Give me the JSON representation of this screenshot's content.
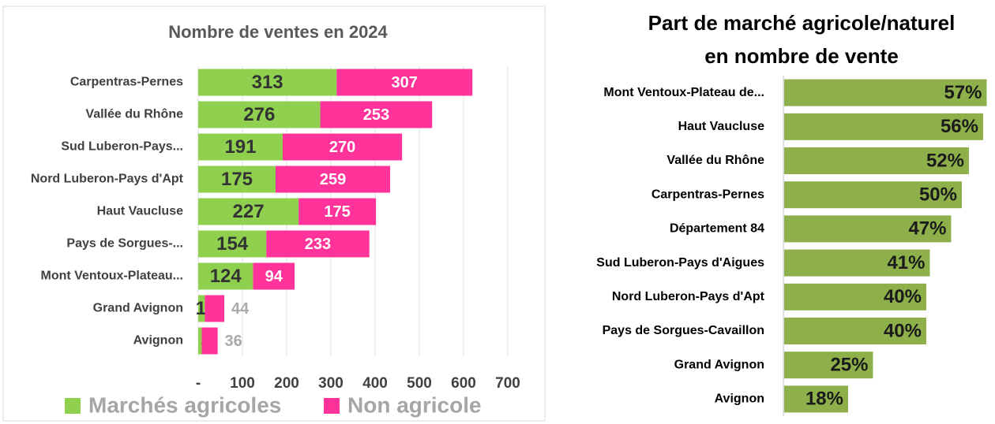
{
  "chart_data": [
    {
      "type": "stacked_bar_h",
      "title": "Nombre de ventes en 2024",
      "categories": [
        "Carpentras-Pernes",
        "Vallée du Rhône",
        "Sud Luberon-Pays...",
        "Nord Luberon-Pays d'Apt",
        "Haut Vaucluse",
        "Pays de Sorgues-...",
        "Mont Ventoux-Plateau...",
        "Grand Avignon",
        "Avignon"
      ],
      "series": [
        {
          "name": "Marchés agricoles",
          "color": "#8fd14f",
          "values": [
            313,
            276,
            191,
            175,
            227,
            154,
            124,
            15,
            8
          ]
        },
        {
          "name": "Non agricole",
          "color": "#ff3399",
          "values": [
            307,
            253,
            270,
            259,
            175,
            233,
            94,
            44,
            36
          ]
        }
      ],
      "xlim": [
        0,
        700
      ],
      "xticks": [
        {
          "value": 0,
          "label": "-"
        },
        100,
        200,
        300,
        400,
        500,
        600,
        700
      ],
      "grid": true,
      "legend": "bottom"
    },
    {
      "type": "bar_h",
      "title": [
        "Part de marché agricole/naturel",
        "en nombre de vente"
      ],
      "categories": [
        "Mont Ventoux-Plateau de...",
        "Haut Vaucluse",
        "Vallée du Rhône",
        "Carpentras-Pernes",
        "Département 84",
        "Sud Luberon-Pays d'Aigues",
        "Nord Luberon-Pays d'Apt",
        "Pays de Sorgues-Cavaillon",
        "Grand Avignon",
        "Avignon"
      ],
      "values": [
        57,
        56,
        52,
        50,
        47,
        41,
        40,
        40,
        25,
        18
      ],
      "value_labels": [
        "57%",
        "56%",
        "52%",
        "50%",
        "47%",
        "41%",
        "40%",
        "40%",
        "25%",
        "18%"
      ],
      "color": "#8db04a",
      "xlim": [
        0,
        58
      ]
    }
  ]
}
